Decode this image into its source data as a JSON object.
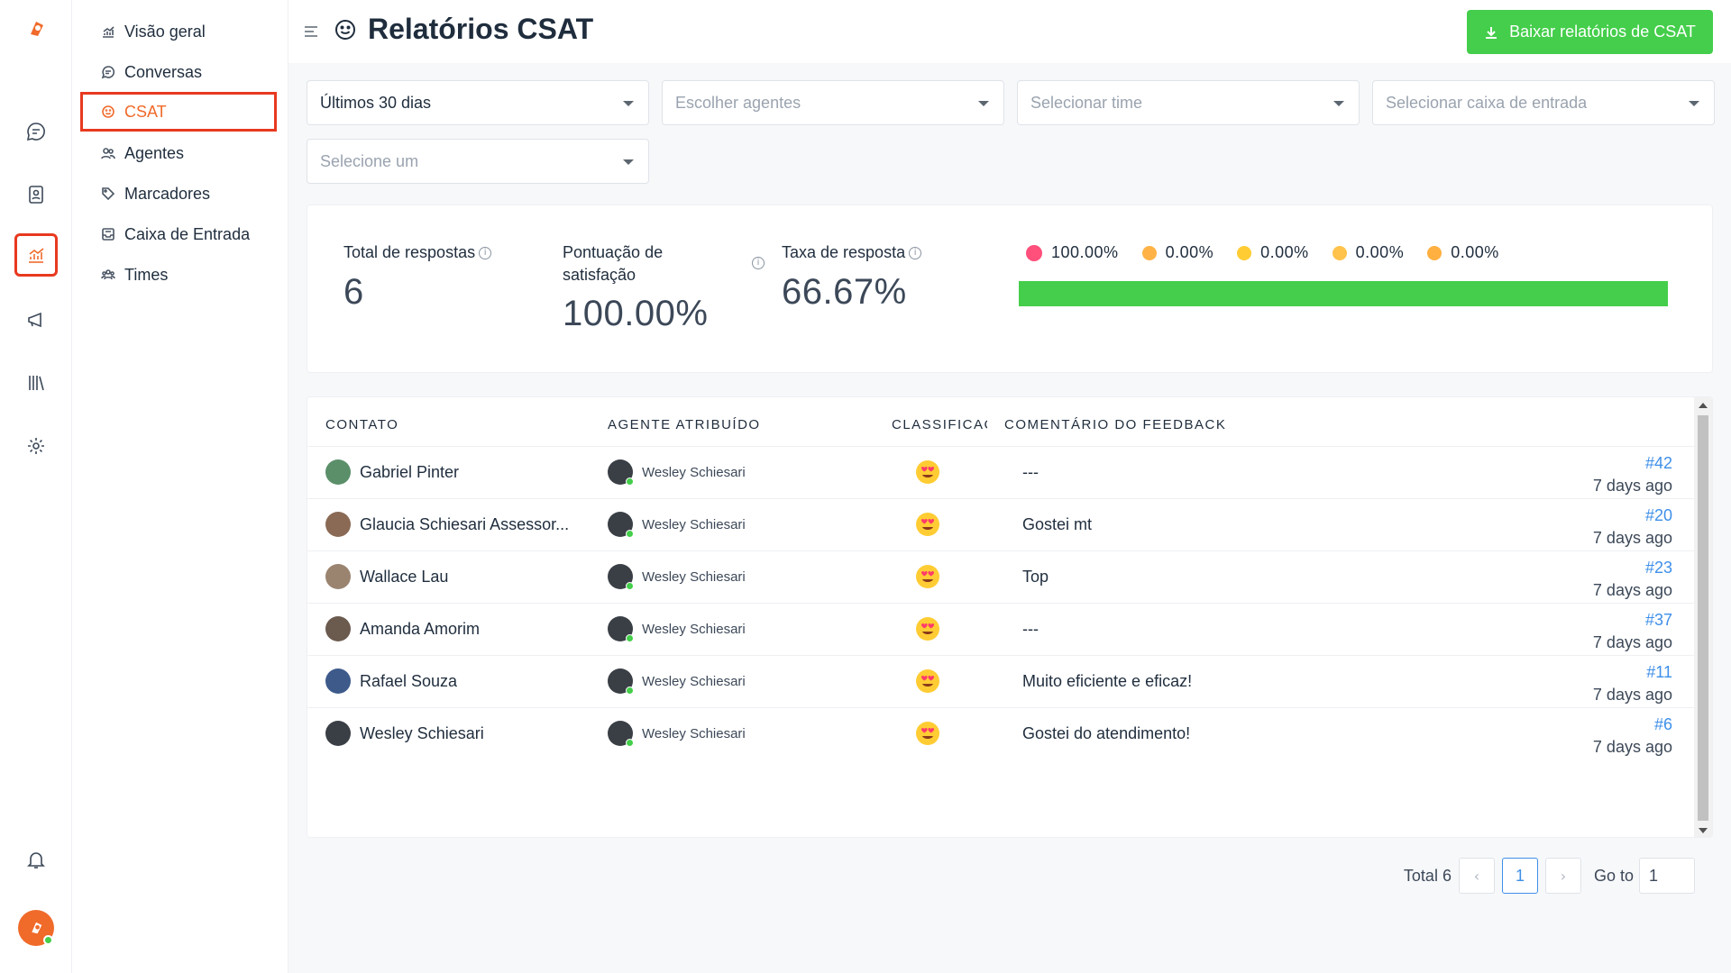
{
  "sidebar": {
    "items": [
      {
        "label": "Visão geral",
        "icon": "chart-line-icon"
      },
      {
        "label": "Conversas",
        "icon": "chat-icon"
      },
      {
        "label": "CSAT",
        "icon": "smile-icon"
      },
      {
        "label": "Agentes",
        "icon": "people-icon"
      },
      {
        "label": "Marcadores",
        "icon": "tag-icon"
      },
      {
        "label": "Caixa de Entrada",
        "icon": "inbox-icon"
      },
      {
        "label": "Times",
        "icon": "team-icon"
      }
    ]
  },
  "header": {
    "title": "Relatórios CSAT",
    "download_label": "Baixar relatórios de CSAT"
  },
  "filters": {
    "date_range": "Últimos 30 dias",
    "agents_placeholder": "Escolher agentes",
    "team_placeholder": "Selecionar time",
    "inbox_placeholder": "Selecionar caixa de entrada",
    "rating_placeholder": "Selecione um"
  },
  "metrics": {
    "total_label": "Total de respostas",
    "total_value": "6",
    "satisfaction_label_1": "Pontuação de",
    "satisfaction_label_2": "satisfação",
    "satisfaction_value": "100.00%",
    "response_label": "Taxa de resposta",
    "response_value": "66.67%",
    "ratings": [
      {
        "label": "100.00%",
        "emoji": "heart-eyes-emoji",
        "share": 1.0
      },
      {
        "label": "0.00%",
        "emoji": "smile-emoji",
        "share": 0.0
      },
      {
        "label": "0.00%",
        "emoji": "neutral-emoji",
        "share": 0.0
      },
      {
        "label": "0.00%",
        "emoji": "unhappy-emoji",
        "share": 0.0
      },
      {
        "label": "0.00%",
        "emoji": "angry-emoji",
        "share": 0.0
      }
    ]
  },
  "table": {
    "headers": {
      "contact": "CONTATO",
      "agent": "AGENTE ATRIBUÍDO",
      "rating": "CLASSIFICAÇ",
      "comment": "COMENTÁRIO DO FEEDBACK"
    },
    "rows": [
      {
        "contact": "Gabriel Pinter",
        "agent": "Wesley Schiesari",
        "comment": "---",
        "id": "#42",
        "ago": "7 days ago"
      },
      {
        "contact": "Glaucia Schiesari Assessor...",
        "agent": "Wesley Schiesari",
        "comment": "Gostei mt",
        "id": "#20",
        "ago": "7 days ago"
      },
      {
        "contact": "Wallace Lau",
        "agent": "Wesley Schiesari",
        "comment": "Top",
        "id": "#23",
        "ago": "7 days ago"
      },
      {
        "contact": "Amanda Amorim",
        "agent": "Wesley Schiesari",
        "comment": "---",
        "id": "#37",
        "ago": "7 days ago"
      },
      {
        "contact": "Rafael Souza",
        "agent": "Wesley Schiesari",
        "comment": "Muito eficiente e eficaz!",
        "id": "#11",
        "ago": "7 days ago"
      },
      {
        "contact": "Wesley Schiesari",
        "agent": "Wesley Schiesari",
        "comment": "Gostei do atendimento!",
        "id": "#6",
        "ago": "7 days ago"
      }
    ]
  },
  "pagination": {
    "total_label": "Total 6",
    "current_page": "1",
    "goto_label": "Go to",
    "goto_value": "1"
  },
  "colors": {
    "accent": "#f06a2a",
    "highlight": "#e8391f",
    "success": "#44ce4b",
    "link": "#3e8fe8"
  }
}
